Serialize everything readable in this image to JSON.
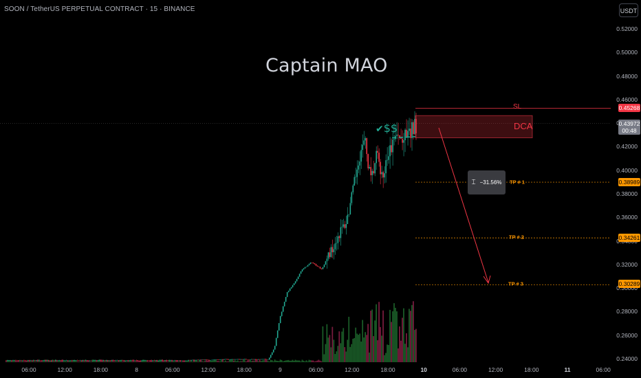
{
  "header": {
    "title": "SOON / TetherUS PERPETUAL CONTRACT · 15 · BINANCE",
    "currency_button": "USDT",
    "brand": "Captain MAO"
  },
  "annotations": {
    "checkmark_icon": "check-icon",
    "dollar_sign": "$$",
    "sl_label": "SL",
    "dca_label": "DCA",
    "tp_labels": [
      "TP # 1",
      "TP # 2",
      "TP # 3"
    ],
    "measure_text": "−31.56%",
    "measure_icon": "ruler-icon"
  },
  "price_badges": {
    "sl": "0.45268",
    "current_price": "0.43972",
    "current_timer": "00:48",
    "tp1": "0.38989",
    "tp2": "0.34261",
    "tp3": "0.30289"
  },
  "colors": {
    "up": "#22ab94",
    "down": "#f23645",
    "sl": "#f23645",
    "tp": "#ff9800",
    "volume_up": "#1b5e20",
    "volume_down": "#7b1e3a"
  },
  "chart_data": {
    "type": "candlestick",
    "y_axis": {
      "min": 0.235,
      "max": 0.53,
      "ticks": [
        "0.52000",
        "0.50000",
        "0.48000",
        "0.46000",
        "0.44000",
        "0.42000",
        "0.40000",
        "0.38000",
        "0.36000",
        "0.34000",
        "0.32000",
        "0.30000",
        "0.28000",
        "0.26000",
        "0.24000"
      ]
    },
    "x_axis": {
      "ticks": [
        "06:00",
        "12:00",
        "18:00",
        "8",
        "06:00",
        "12:00",
        "18:00",
        "9",
        "06:00",
        "12:00",
        "18:00",
        "10",
        "06:00",
        "12:00",
        "18:00",
        "11",
        "06:00"
      ],
      "bold": [
        false,
        false,
        false,
        false,
        false,
        false,
        false,
        false,
        false,
        false,
        false,
        true,
        false,
        false,
        false,
        true,
        false
      ]
    },
    "levels": {
      "sl": 0.45268,
      "dca_top": 0.4464,
      "dca_bottom": 0.4275,
      "tp1": 0.38989,
      "tp2": 0.34261,
      "tp3": 0.30289
    },
    "close_path": [
      [
        0.2385,
        0
      ],
      [
        0.2385,
        0.42
      ],
      [
        0.2395,
        0.55
      ],
      [
        0.2395,
        0.64
      ],
      [
        0.25,
        0.655
      ],
      [
        0.275,
        0.668
      ],
      [
        0.296,
        0.685
      ],
      [
        0.305,
        0.705
      ],
      [
        0.315,
        0.72
      ],
      [
        0.322,
        0.745
      ],
      [
        0.316,
        0.77
      ],
      [
        0.33,
        0.79
      ],
      [
        0.348,
        0.815
      ],
      [
        0.356,
        0.83
      ],
      [
        0.38,
        0.845
      ],
      [
        0.41,
        0.86
      ],
      [
        0.425,
        0.875
      ],
      [
        0.39,
        0.89
      ],
      [
        0.415,
        0.905
      ],
      [
        0.39,
        0.92
      ],
      [
        0.41,
        0.93
      ],
      [
        0.428,
        0.95
      ],
      [
        0.425,
        0.965
      ],
      [
        0.43,
        0.985
      ],
      [
        0.4397,
        1.0
      ]
    ]
  }
}
